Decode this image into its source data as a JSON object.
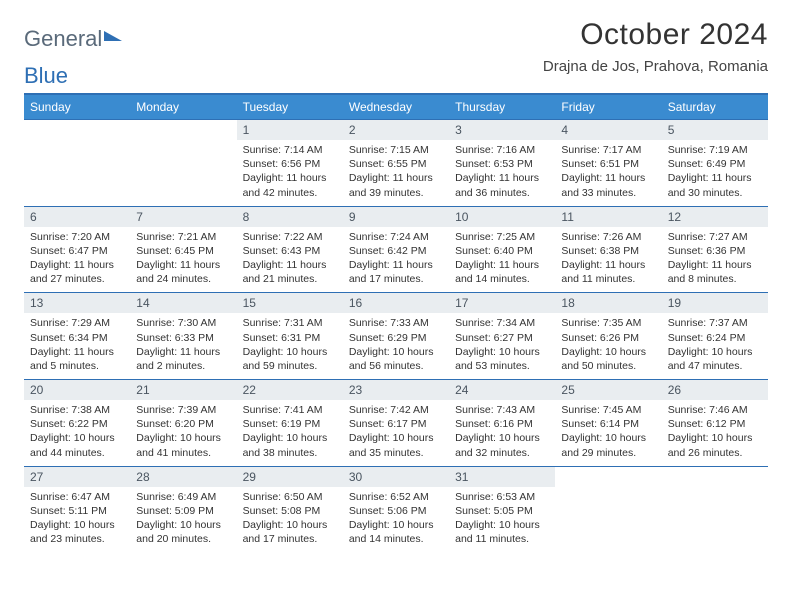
{
  "logo": {
    "part1": "General",
    "part2": "Blue"
  },
  "title": "October 2024",
  "location": "Drajna de Jos, Prahova, Romania",
  "colors": {
    "header_bg": "#3a8bd0",
    "rule": "#2e6fb4",
    "daynum_bg": "#e9edf0",
    "text": "#333333",
    "logo_gray": "#5a6a7a"
  },
  "weekdays": [
    "Sunday",
    "Monday",
    "Tuesday",
    "Wednesday",
    "Thursday",
    "Friday",
    "Saturday"
  ],
  "weeks": [
    [
      null,
      null,
      {
        "n": "1",
        "sr": "7:14 AM",
        "ss": "6:56 PM",
        "dl": "11 hours and 42 minutes."
      },
      {
        "n": "2",
        "sr": "7:15 AM",
        "ss": "6:55 PM",
        "dl": "11 hours and 39 minutes."
      },
      {
        "n": "3",
        "sr": "7:16 AM",
        "ss": "6:53 PM",
        "dl": "11 hours and 36 minutes."
      },
      {
        "n": "4",
        "sr": "7:17 AM",
        "ss": "6:51 PM",
        "dl": "11 hours and 33 minutes."
      },
      {
        "n": "5",
        "sr": "7:19 AM",
        "ss": "6:49 PM",
        "dl": "11 hours and 30 minutes."
      }
    ],
    [
      {
        "n": "6",
        "sr": "7:20 AM",
        "ss": "6:47 PM",
        "dl": "11 hours and 27 minutes."
      },
      {
        "n": "7",
        "sr": "7:21 AM",
        "ss": "6:45 PM",
        "dl": "11 hours and 24 minutes."
      },
      {
        "n": "8",
        "sr": "7:22 AM",
        "ss": "6:43 PM",
        "dl": "11 hours and 21 minutes."
      },
      {
        "n": "9",
        "sr": "7:24 AM",
        "ss": "6:42 PM",
        "dl": "11 hours and 17 minutes."
      },
      {
        "n": "10",
        "sr": "7:25 AM",
        "ss": "6:40 PM",
        "dl": "11 hours and 14 minutes."
      },
      {
        "n": "11",
        "sr": "7:26 AM",
        "ss": "6:38 PM",
        "dl": "11 hours and 11 minutes."
      },
      {
        "n": "12",
        "sr": "7:27 AM",
        "ss": "6:36 PM",
        "dl": "11 hours and 8 minutes."
      }
    ],
    [
      {
        "n": "13",
        "sr": "7:29 AM",
        "ss": "6:34 PM",
        "dl": "11 hours and 5 minutes."
      },
      {
        "n": "14",
        "sr": "7:30 AM",
        "ss": "6:33 PM",
        "dl": "11 hours and 2 minutes."
      },
      {
        "n": "15",
        "sr": "7:31 AM",
        "ss": "6:31 PM",
        "dl": "10 hours and 59 minutes."
      },
      {
        "n": "16",
        "sr": "7:33 AM",
        "ss": "6:29 PM",
        "dl": "10 hours and 56 minutes."
      },
      {
        "n": "17",
        "sr": "7:34 AM",
        "ss": "6:27 PM",
        "dl": "10 hours and 53 minutes."
      },
      {
        "n": "18",
        "sr": "7:35 AM",
        "ss": "6:26 PM",
        "dl": "10 hours and 50 minutes."
      },
      {
        "n": "19",
        "sr": "7:37 AM",
        "ss": "6:24 PM",
        "dl": "10 hours and 47 minutes."
      }
    ],
    [
      {
        "n": "20",
        "sr": "7:38 AM",
        "ss": "6:22 PM",
        "dl": "10 hours and 44 minutes."
      },
      {
        "n": "21",
        "sr": "7:39 AM",
        "ss": "6:20 PM",
        "dl": "10 hours and 41 minutes."
      },
      {
        "n": "22",
        "sr": "7:41 AM",
        "ss": "6:19 PM",
        "dl": "10 hours and 38 minutes."
      },
      {
        "n": "23",
        "sr": "7:42 AM",
        "ss": "6:17 PM",
        "dl": "10 hours and 35 minutes."
      },
      {
        "n": "24",
        "sr": "7:43 AM",
        "ss": "6:16 PM",
        "dl": "10 hours and 32 minutes."
      },
      {
        "n": "25",
        "sr": "7:45 AM",
        "ss": "6:14 PM",
        "dl": "10 hours and 29 minutes."
      },
      {
        "n": "26",
        "sr": "7:46 AM",
        "ss": "6:12 PM",
        "dl": "10 hours and 26 minutes."
      }
    ],
    [
      {
        "n": "27",
        "sr": "6:47 AM",
        "ss": "5:11 PM",
        "dl": "10 hours and 23 minutes."
      },
      {
        "n": "28",
        "sr": "6:49 AM",
        "ss": "5:09 PM",
        "dl": "10 hours and 20 minutes."
      },
      {
        "n": "29",
        "sr": "6:50 AM",
        "ss": "5:08 PM",
        "dl": "10 hours and 17 minutes."
      },
      {
        "n": "30",
        "sr": "6:52 AM",
        "ss": "5:06 PM",
        "dl": "10 hours and 14 minutes."
      },
      {
        "n": "31",
        "sr": "6:53 AM",
        "ss": "5:05 PM",
        "dl": "10 hours and 11 minutes."
      },
      null,
      null
    ]
  ],
  "labels": {
    "sunrise": "Sunrise: ",
    "sunset": "Sunset: ",
    "daylight": "Daylight: "
  }
}
